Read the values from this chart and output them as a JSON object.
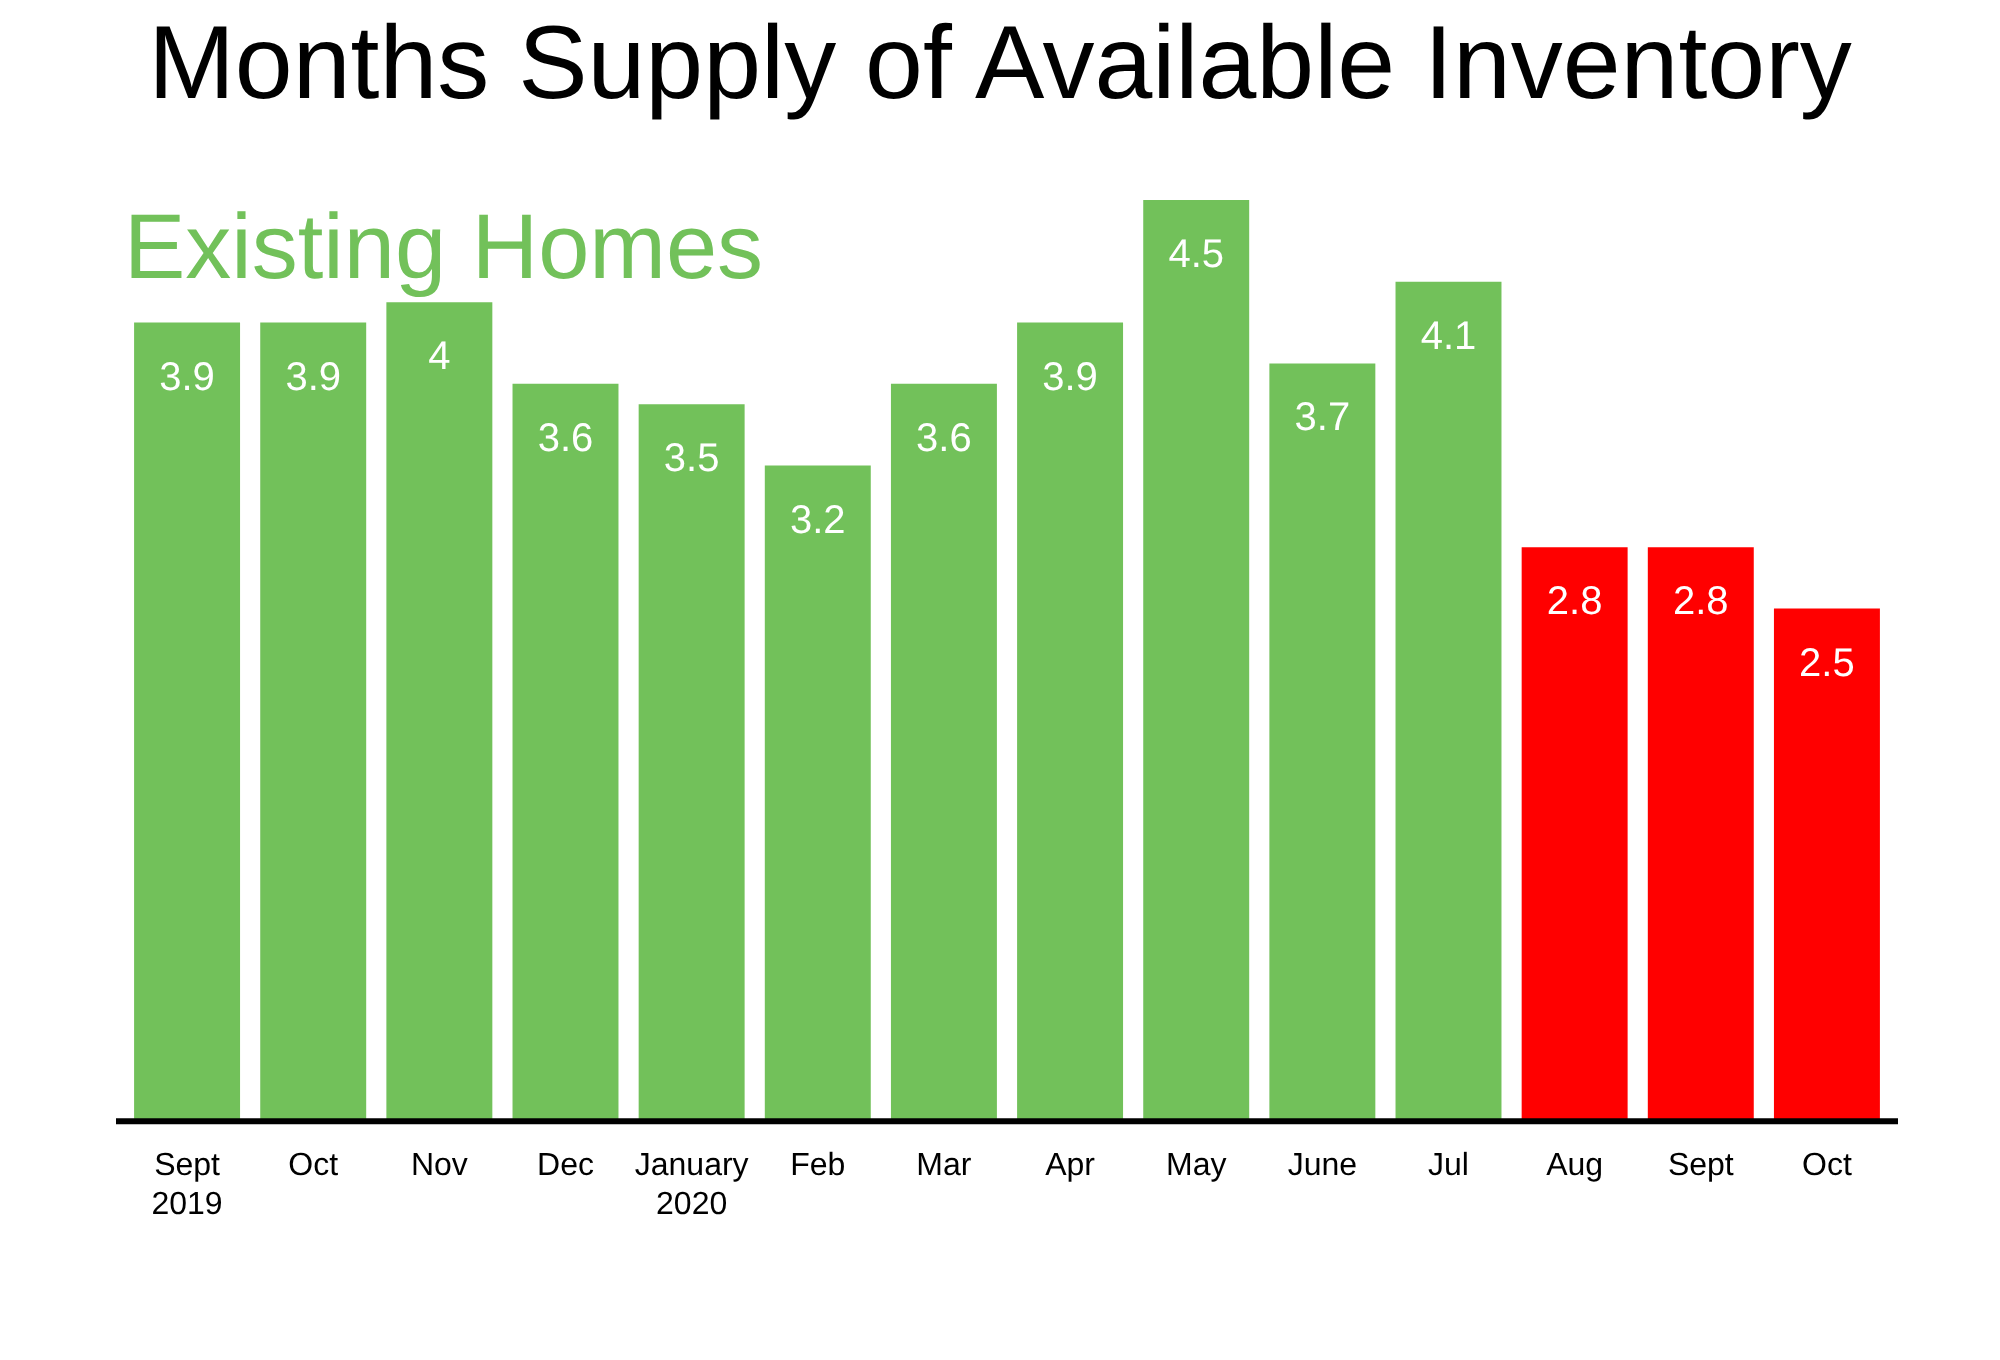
{
  "chart_data": {
    "type": "bar",
    "title": "Months Supply of Available Inventory",
    "subtitle": "Existing Homes",
    "categories": [
      "Sept\n2019",
      "Oct",
      "Nov",
      "Dec",
      "January\n2020",
      "Feb",
      "Mar",
      "Apr",
      "May",
      "June",
      "Jul",
      "Aug",
      "Sept",
      "Oct"
    ],
    "values": [
      3.9,
      3.9,
      4,
      3.6,
      3.5,
      3.2,
      3.6,
      3.9,
      4.5,
      3.7,
      4.1,
      2.8,
      2.8,
      2.5
    ],
    "colors": [
      "#72c15a",
      "#72c15a",
      "#72c15a",
      "#72c15a",
      "#72c15a",
      "#72c15a",
      "#72c15a",
      "#72c15a",
      "#72c15a",
      "#72c15a",
      "#72c15a",
      "#ff0000",
      "#ff0000",
      "#ff0000"
    ],
    "tick_labels": "x",
    "grid": false,
    "legend": false,
    "data_labels": true
  }
}
